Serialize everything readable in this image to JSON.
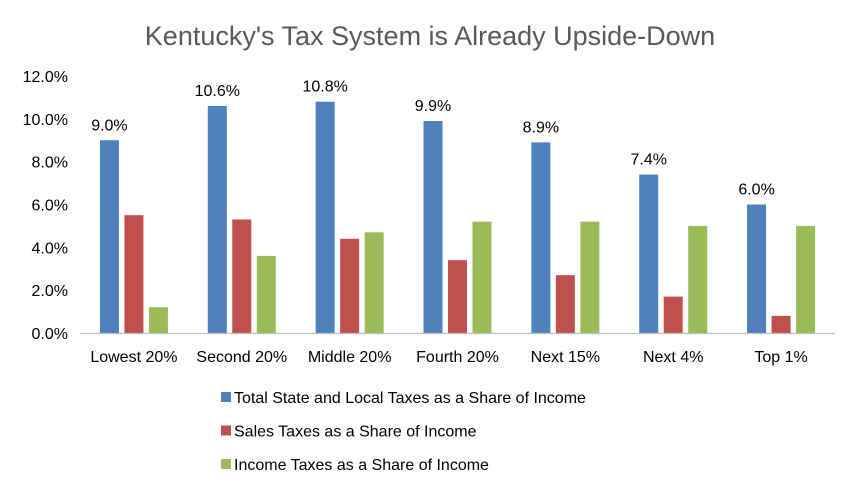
{
  "chart_data": {
    "type": "bar",
    "title": "Kentucky's Tax System is Already Upside-Down",
    "xlabel": "",
    "ylabel": "",
    "ylim": [
      0,
      12
    ],
    "yticks": [
      0,
      2,
      4,
      6,
      8,
      10,
      12
    ],
    "ytick_labels": [
      "0.0%",
      "2.0%",
      "4.0%",
      "6.0%",
      "8.0%",
      "10.0%",
      "12.0%"
    ],
    "categories": [
      "Lowest 20%",
      "Second 20%",
      "Middle 20%",
      "Fourth 20%",
      "Next 15%",
      "Next 4%",
      "Top 1%"
    ],
    "series": [
      {
        "name": "Total State and Local Taxes as a Share of Income",
        "color": "#4F81BD",
        "values": [
          9.0,
          10.6,
          10.8,
          9.9,
          8.9,
          7.4,
          6.0
        ],
        "data_labels": [
          "9.0%",
          "10.6%",
          "10.8%",
          "9.9%",
          "8.9%",
          "7.4%",
          "6.0%"
        ]
      },
      {
        "name": "Sales Taxes as a Share of Income",
        "color": "#C0504D",
        "values": [
          5.5,
          5.3,
          4.4,
          3.4,
          2.7,
          1.7,
          0.8
        ]
      },
      {
        "name": "Income Taxes as a Share of Income",
        "color": "#9BBB59",
        "values": [
          1.2,
          3.6,
          4.7,
          5.2,
          5.2,
          5.0,
          5.0
        ]
      }
    ],
    "grid": false,
    "legend": "bottom",
    "axis_color": "#BFBFBF"
  }
}
